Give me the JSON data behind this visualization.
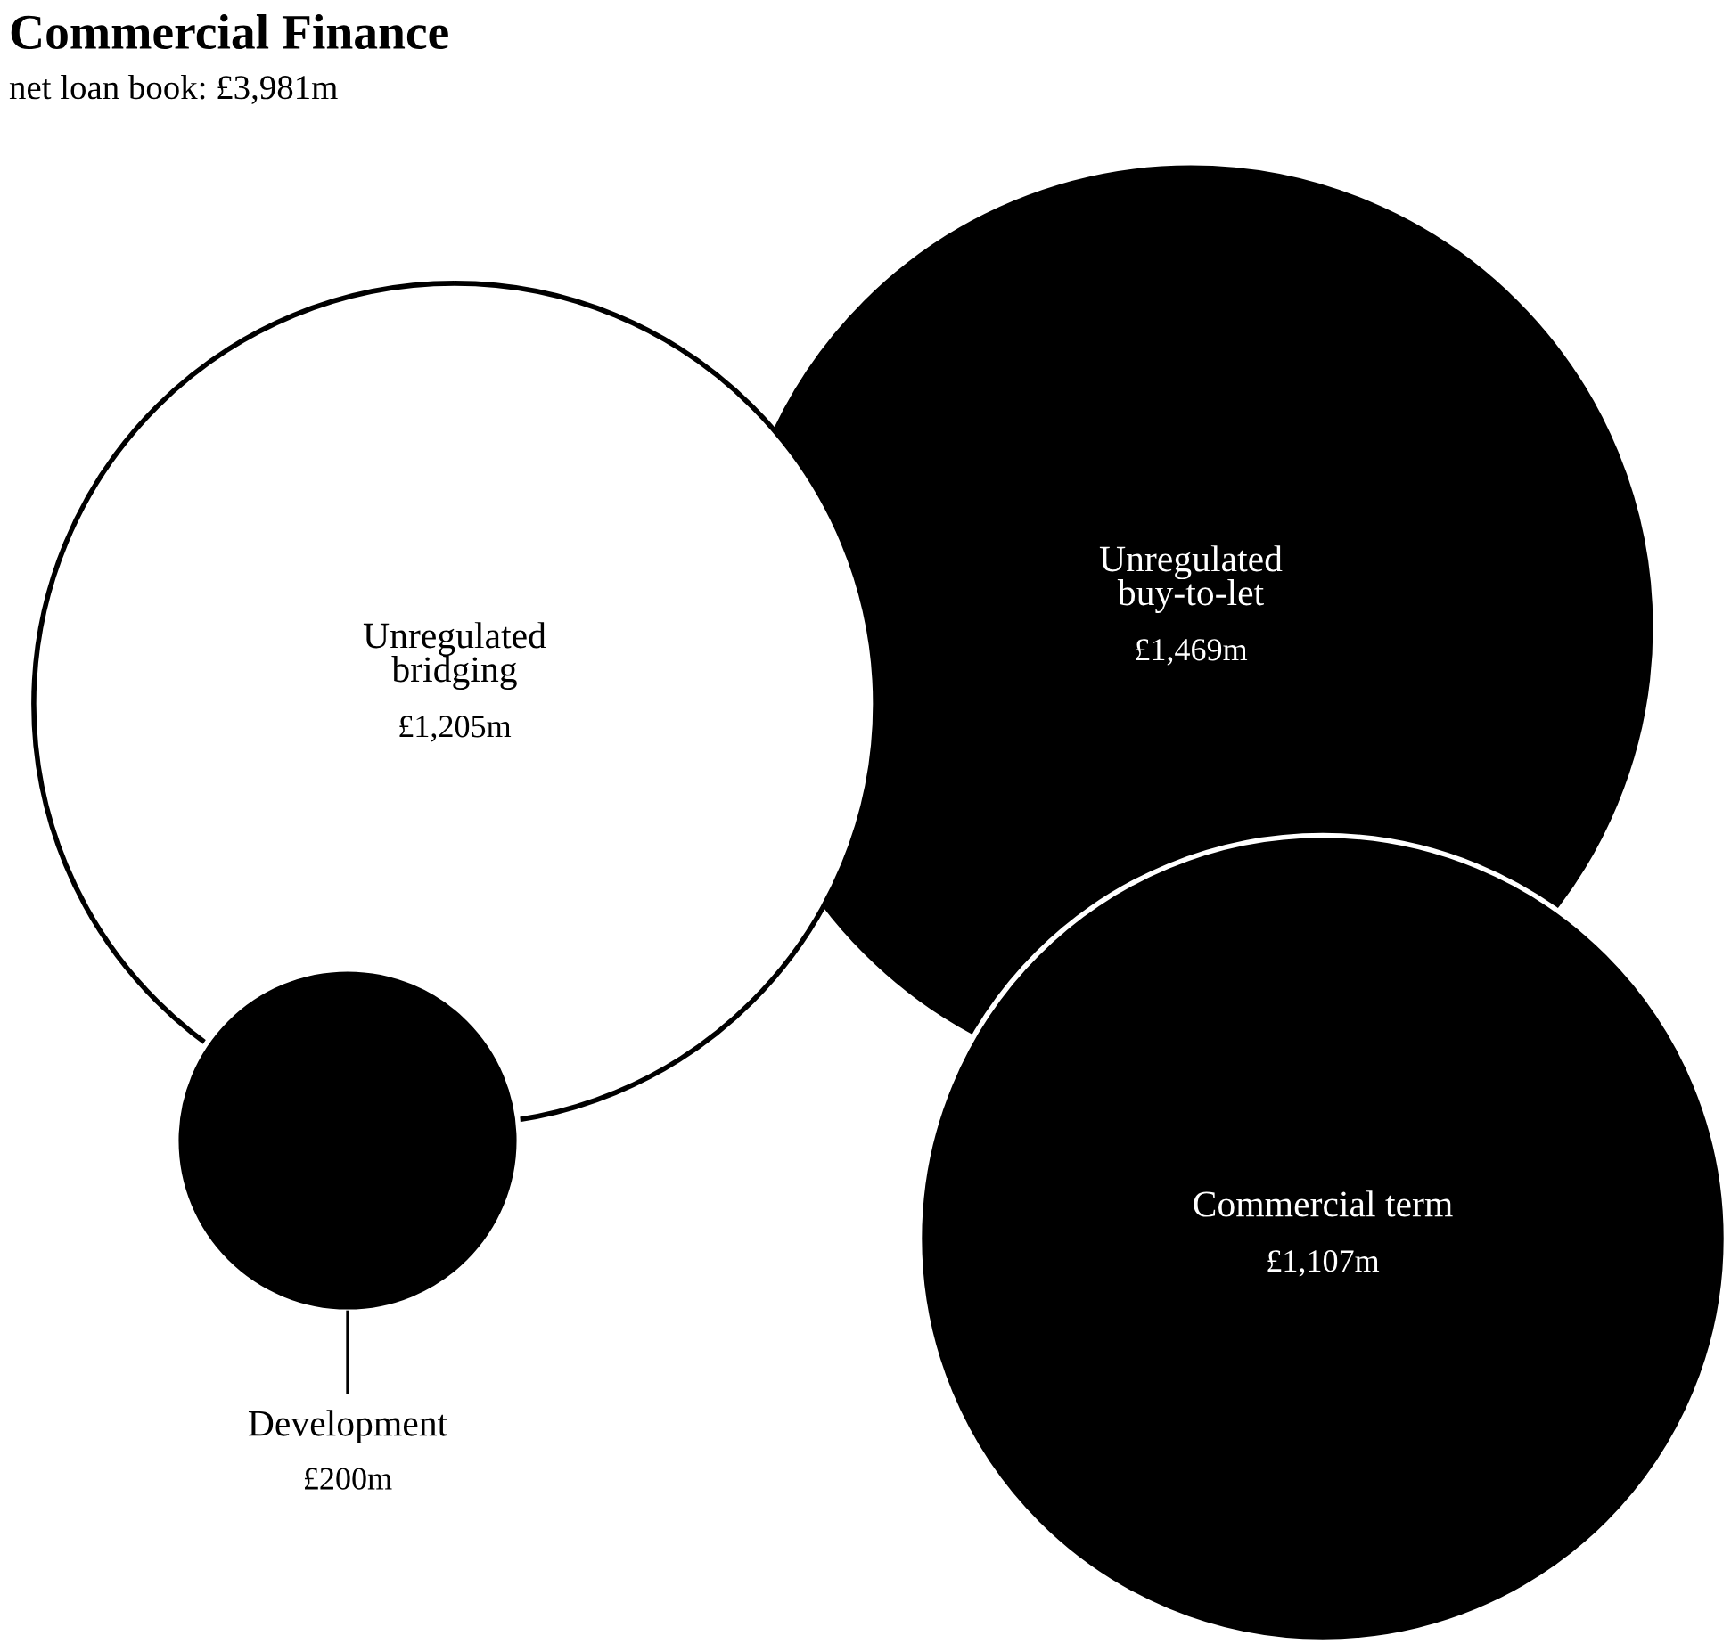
{
  "chart_data": {
    "type": "other",
    "title": "Commercial Finance",
    "subtitle": "net loan book: £3,981m",
    "categories": [
      "Unregulated\nbridging",
      "Unregulated\nbuy-to-let",
      "Commercial term",
      "Development"
    ],
    "values": [
      1205,
      1469,
      1107,
      200
    ],
    "value_labels": [
      "£1,205m",
      "£1,469m",
      "£1,107m",
      "£200m"
    ],
    "colors": [
      "#ffffff",
      "#000000",
      "#000000",
      "#000000"
    ]
  }
}
